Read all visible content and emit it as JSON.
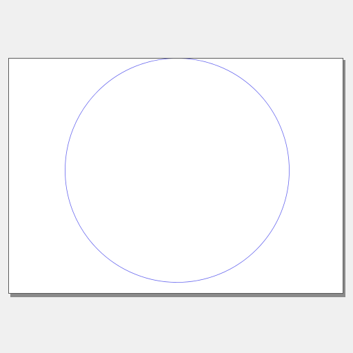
{
  "canvas": {
    "background_color": "#f0f0f0",
    "page_color": "#ffffff",
    "page_border_color": "#5a5a5a",
    "page_shadow_color": "#8a8a8a"
  },
  "shapes": [
    {
      "type": "circle",
      "stroke_color": "#6666ee",
      "fill": "none"
    }
  ]
}
